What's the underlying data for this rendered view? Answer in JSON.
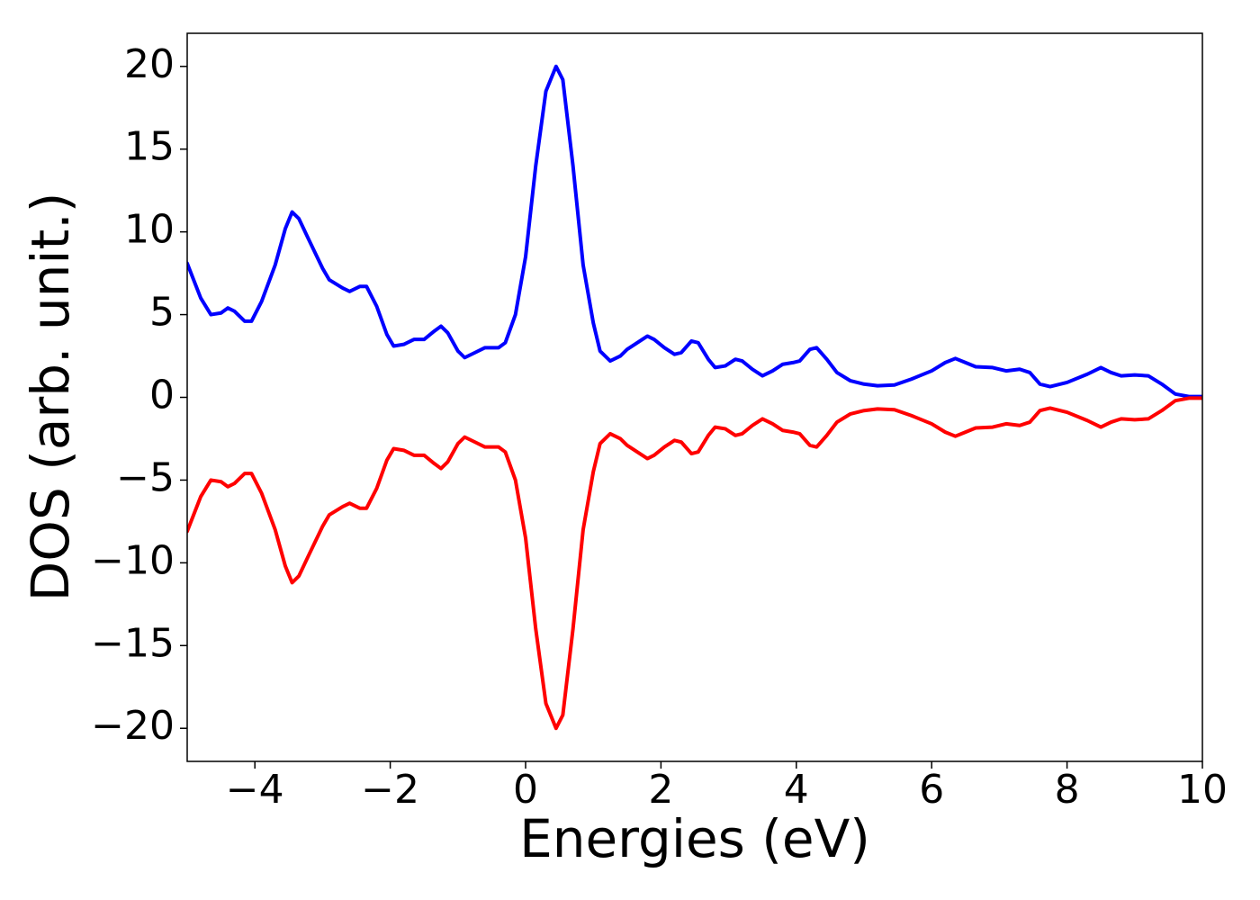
{
  "chart_data": {
    "type": "line",
    "xlabel": "Energies (eV)",
    "ylabel": "DOS (arb. unit.)",
    "x": [
      -5,
      -4.8,
      -4.65,
      -4.5,
      -4.4,
      -4.3,
      -4.15,
      -4.05,
      -3.9,
      -3.7,
      -3.55,
      -3.45,
      -3.35,
      -3.2,
      -3.0,
      -2.9,
      -2.7,
      -2.6,
      -2.45,
      -2.35,
      -2.2,
      -2.05,
      -1.95,
      -1.8,
      -1.65,
      -1.5,
      -1.35,
      -1.25,
      -1.15,
      -1.0,
      -0.9,
      -0.75,
      -0.6,
      -0.4,
      -0.3,
      -0.15,
      0,
      0.15,
      0.3,
      0.45,
      0.55,
      0.7,
      0.85,
      1.0,
      1.1,
      1.25,
      1.4,
      1.5,
      1.65,
      1.8,
      1.9,
      2.05,
      2.2,
      2.3,
      2.45,
      2.55,
      2.7,
      2.8,
      2.95,
      3.1,
      3.2,
      3.35,
      3.5,
      3.65,
      3.8,
      3.95,
      4.05,
      4.2,
      4.3,
      4.45,
      4.6,
      4.8,
      5.0,
      5.2,
      5.45,
      5.7,
      6.0,
      6.2,
      6.35,
      6.5,
      6.65,
      6.9,
      7.1,
      7.3,
      7.45,
      7.6,
      7.75,
      8.0,
      8.3,
      8.5,
      8.65,
      8.8,
      9.0,
      9.2,
      9.4,
      9.6,
      9.8,
      10
    ],
    "series": [
      {
        "color": "#0000ff",
        "values": [
          8.1,
          6.0,
          5.0,
          5.1,
          5.4,
          5.2,
          4.6,
          4.6,
          5.8,
          8.0,
          10.2,
          11.2,
          10.8,
          9.5,
          7.8,
          7.1,
          6.6,
          6.4,
          6.7,
          6.7,
          5.5,
          3.8,
          3.1,
          3.2,
          3.5,
          3.5,
          4.0,
          4.3,
          3.9,
          2.8,
          2.4,
          2.7,
          3.0,
          3.0,
          3.3,
          5.0,
          8.5,
          14,
          18.5,
          20,
          19.2,
          14,
          8,
          4.5,
          2.8,
          2.2,
          2.5,
          2.9,
          3.3,
          3.7,
          3.5,
          3.0,
          2.6,
          2.7,
          3.4,
          3.3,
          2.3,
          1.8,
          1.9,
          2.3,
          2.2,
          1.7,
          1.3,
          1.6,
          2.0,
          2.1,
          2.2,
          2.9,
          3.0,
          2.3,
          1.5,
          1.0,
          0.8,
          0.7,
          0.75,
          1.1,
          1.6,
          2.1,
          2.35,
          2.1,
          1.85,
          1.8,
          1.6,
          1.7,
          1.5,
          0.8,
          0.65,
          0.9,
          1.4,
          1.8,
          1.5,
          1.3,
          1.35,
          1.3,
          0.8,
          0.2,
          0.05,
          0.05
        ]
      },
      {
        "color": "#ff0000",
        "values": [
          -8.1,
          -6.0,
          -5.0,
          -5.1,
          -5.4,
          -5.2,
          -4.6,
          -4.6,
          -5.8,
          -8.0,
          -10.2,
          -11.2,
          -10.8,
          -9.5,
          -7.8,
          -7.1,
          -6.6,
          -6.4,
          -6.7,
          -6.7,
          -5.5,
          -3.8,
          -3.1,
          -3.2,
          -3.5,
          -3.5,
          -4.0,
          -4.3,
          -3.9,
          -2.8,
          -2.4,
          -2.7,
          -3.0,
          -3.0,
          -3.3,
          -5.0,
          -8.5,
          -14,
          -18.5,
          -20,
          -19.2,
          -14,
          -8,
          -4.5,
          -2.8,
          -2.2,
          -2.5,
          -2.9,
          -3.3,
          -3.7,
          -3.5,
          -3.0,
          -2.6,
          -2.7,
          -3.4,
          -3.3,
          -2.3,
          -1.8,
          -1.9,
          -2.3,
          -2.2,
          -1.7,
          -1.3,
          -1.6,
          -2.0,
          -2.1,
          -2.2,
          -2.9,
          -3.0,
          -2.3,
          -1.5,
          -1.0,
          -0.8,
          -0.7,
          -0.75,
          -1.1,
          -1.6,
          -2.1,
          -2.35,
          -2.1,
          -1.85,
          -1.8,
          -1.6,
          -1.7,
          -1.5,
          -0.8,
          -0.65,
          -0.9,
          -1.4,
          -1.8,
          -1.5,
          -1.3,
          -1.35,
          -1.3,
          -0.8,
          -0.2,
          -0.05,
          -0.05
        ]
      }
    ],
    "xlim": [
      -5,
      10
    ],
    "xticks": [
      {
        "value": -4,
        "label": "−4"
      },
      {
        "value": -2,
        "label": "−2"
      },
      0,
      2,
      4,
      6,
      8,
      10
    ],
    "ylim": [
      -22,
      22
    ],
    "yticks": [
      {
        "value": -20,
        "label": "−20"
      },
      {
        "value": -15,
        "label": "−15"
      },
      {
        "value": -10,
        "label": "−10"
      },
      {
        "value": -5,
        "label": "−5"
      },
      0,
      5,
      10,
      15,
      20
    ]
  }
}
